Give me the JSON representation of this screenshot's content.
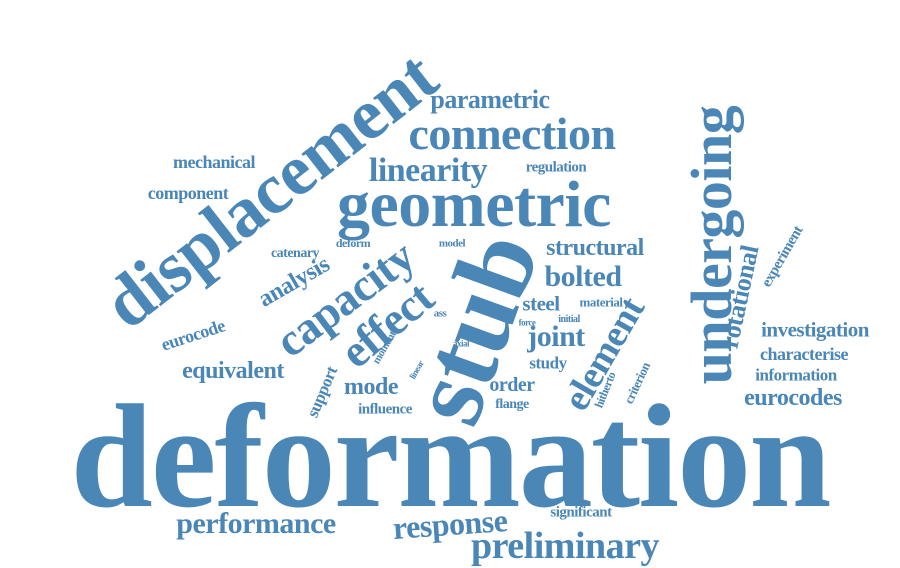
{
  "cloud": {
    "color": "#4a86b6",
    "words": [
      "deformation",
      "stub",
      "displacement",
      "geometric",
      "undergoing",
      "connection",
      "capacity",
      "effect",
      "element",
      "linearity",
      "preliminary",
      "performance",
      "response",
      "bolted",
      "joint",
      "parametric",
      "structural",
      "rotational",
      "analysis",
      "equivalent",
      "eurocodes",
      "mode",
      "investigation",
      "steel",
      "characterise",
      "mechanical",
      "component",
      "eurocode",
      "information",
      "order",
      "study",
      "support",
      "significant",
      "regulation",
      "experiment",
      "influence",
      "flange",
      "catenary",
      "material",
      "criterion",
      "hitherto",
      "moment",
      "deform",
      "model",
      "ass",
      "force",
      "initial",
      "linear",
      "axial"
    ]
  }
}
